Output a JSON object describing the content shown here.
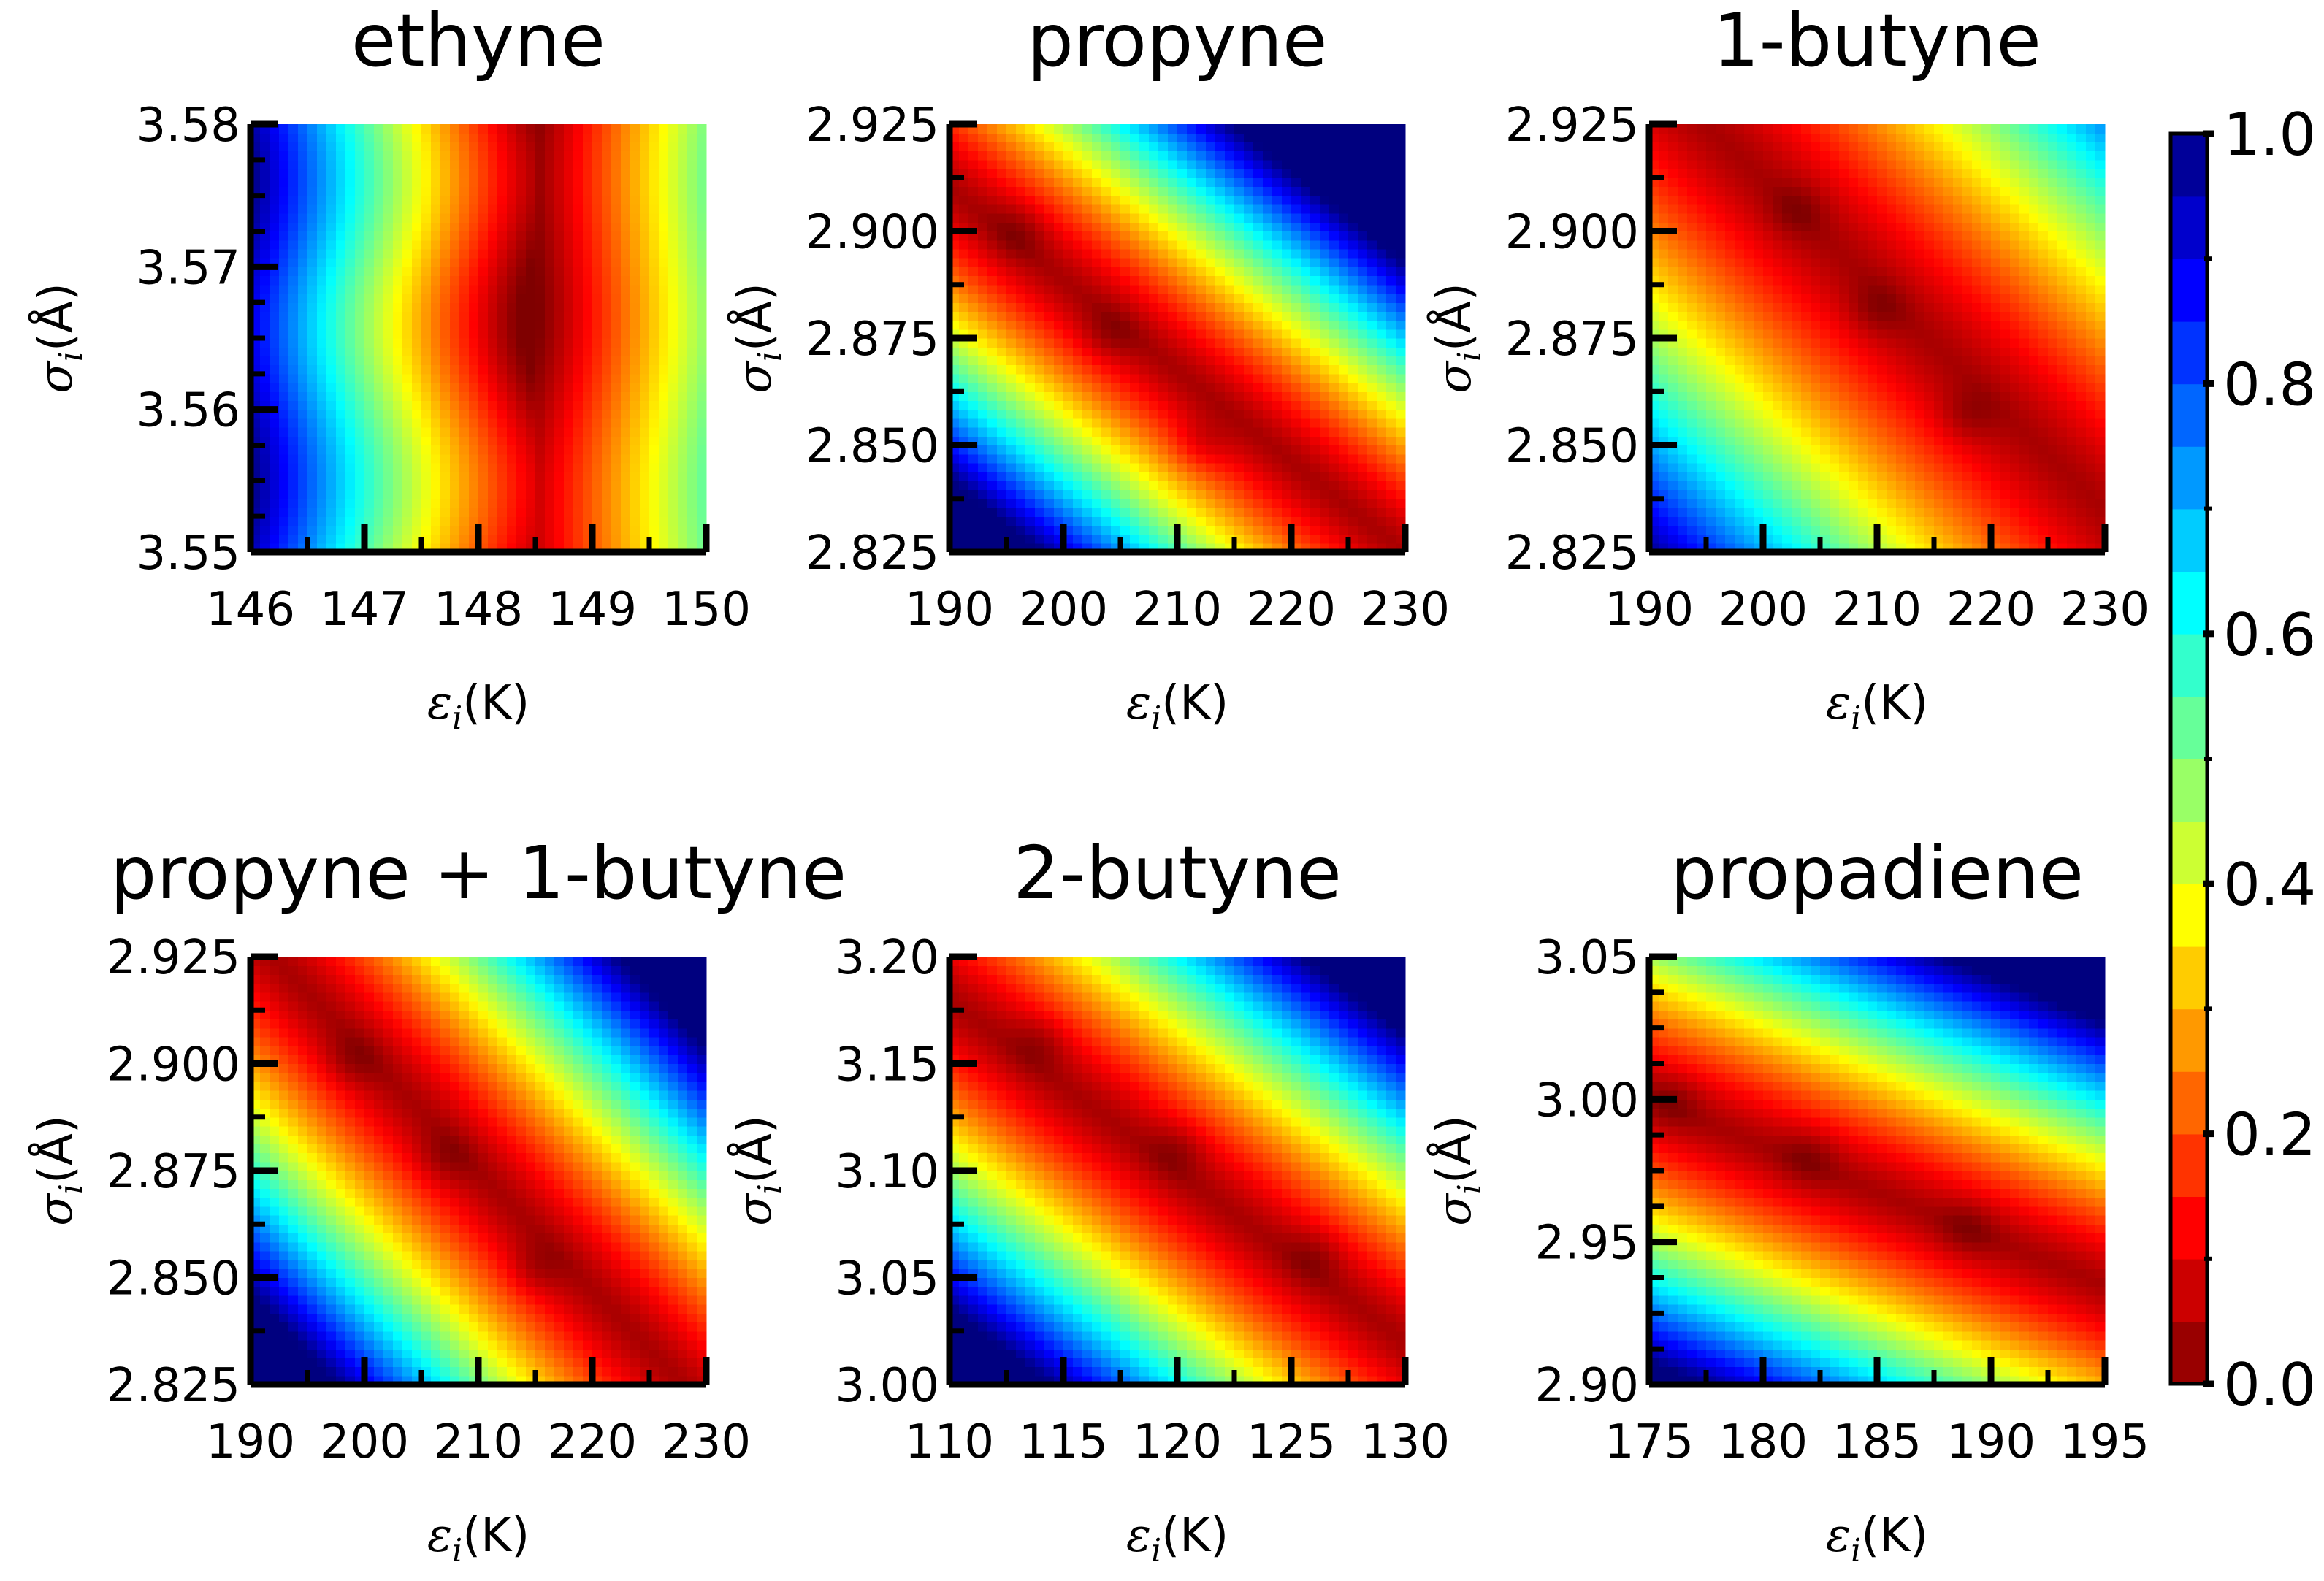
{
  "colormap": {
    "name": "jet",
    "stops": [
      "#00007f",
      "#0000ff",
      "#007fff",
      "#00ffff",
      "#7fff7f",
      "#ffff00",
      "#ff7f00",
      "#ff0000",
      "#7f0000"
    ]
  },
  "colorbar": {
    "range": [
      0.0,
      1.0
    ],
    "ticks": [
      "0.0",
      "0.2",
      "0.4",
      "0.6",
      "0.8",
      "1.0"
    ]
  },
  "chart_data": [
    {
      "type": "heatmap",
      "title": "ethyne",
      "xlabel_symbol": "ε",
      "xlabel_sub": "i",
      "xlabel_unit": "(K)",
      "ylabel_symbol": "σ",
      "ylabel_sub": "i",
      "ylabel_unit": "(Å)",
      "xlim": [
        146,
        150
      ],
      "ylim": [
        3.55,
        3.58
      ],
      "xticks": [
        "146",
        "147",
        "148",
        "149",
        "150"
      ],
      "yticks": [
        "3.55",
        "3.56",
        "3.57",
        "3.58"
      ],
      "pattern": "vertical",
      "valley_x": 148.5,
      "valley_y": 3.574
    },
    {
      "type": "heatmap",
      "title": "propyne",
      "xlabel_symbol": "ε",
      "xlabel_sub": "i",
      "xlabel_unit": "(K)",
      "ylabel_symbol": "σ",
      "ylabel_sub": "i",
      "ylabel_unit": "(Å)",
      "xlim": [
        190,
        230
      ],
      "ylim": [
        2.825,
        2.925
      ],
      "xticks": [
        "190",
        "200",
        "210",
        "220",
        "230"
      ],
      "yticks": [
        "2.825",
        "2.850",
        "2.875",
        "2.900",
        "2.925"
      ],
      "pattern": "diagonal",
      "valley": [
        [
          190,
          2.91
        ],
        [
          230,
          2.825
        ]
      ],
      "width": 0.55,
      "minima": [
        [
          196,
          2.9
        ],
        [
          204,
          2.876
        ],
        [
          212,
          2.85
        ]
      ]
    },
    {
      "type": "heatmap",
      "title": "1-butyne",
      "xlabel_symbol": "ε",
      "xlabel_sub": "i",
      "xlabel_unit": "(K)",
      "ylabel_symbol": "σ",
      "ylabel_sub": "i",
      "ylabel_unit": "(Å)",
      "xlim": [
        190,
        230
      ],
      "ylim": [
        2.825,
        2.925
      ],
      "xticks": [
        "190",
        "200",
        "210",
        "220",
        "230"
      ],
      "yticks": [
        "2.825",
        "2.850",
        "2.875",
        "2.900",
        "2.925"
      ],
      "pattern": "diagonal",
      "valley": [
        [
          195,
          2.925
        ],
        [
          230,
          2.835
        ]
      ],
      "width": 0.85,
      "minima": [
        [
          203,
          2.905
        ],
        [
          210,
          2.882
        ],
        [
          218,
          2.857
        ]
      ]
    },
    {
      "type": "heatmap",
      "title": "propyne + 1-butyne",
      "xlabel_symbol": "ε",
      "xlabel_sub": "i",
      "xlabel_unit": "(K)",
      "ylabel_symbol": "σ",
      "ylabel_sub": "i",
      "ylabel_unit": "(Å)",
      "xlim": [
        190,
        230
      ],
      "ylim": [
        2.825,
        2.925
      ],
      "xticks": [
        "190",
        "200",
        "210",
        "220",
        "230"
      ],
      "yticks": [
        "2.825",
        "2.850",
        "2.875",
        "2.900",
        "2.925"
      ],
      "pattern": "diagonal",
      "valley": [
        [
          192,
          2.925
        ],
        [
          228,
          2.825
        ]
      ],
      "width": 0.6,
      "minima": [
        [
          199,
          2.901
        ],
        [
          207,
          2.878
        ],
        [
          215,
          2.852
        ]
      ]
    },
    {
      "type": "heatmap",
      "title": "2-butyne",
      "xlabel_symbol": "ε",
      "xlabel_sub": "i",
      "xlabel_unit": "(K)",
      "ylabel_symbol": "σ",
      "ylabel_sub": "i",
      "ylabel_unit": "(Å)",
      "xlim": [
        110,
        130
      ],
      "ylim": [
        3.0,
        3.2
      ],
      "xticks": [
        "110",
        "115",
        "120",
        "125",
        "130"
      ],
      "yticks": [
        "3.00",
        "3.05",
        "3.10",
        "3.15",
        "3.20"
      ],
      "pattern": "diagonal",
      "valley": [
        [
          110,
          3.18
        ],
        [
          130,
          3.02
        ]
      ],
      "width": 0.6,
      "minima": [
        [
          114,
          3.16
        ],
        [
          120,
          3.11
        ],
        [
          126,
          3.06
        ]
      ]
    },
    {
      "type": "heatmap",
      "title": "propadiene",
      "xlabel_symbol": "ε",
      "xlabel_sub": "i",
      "xlabel_unit": "(K)",
      "ylabel_symbol": "σ",
      "ylabel_sub": "i",
      "ylabel_unit": "(Å)",
      "xlim": [
        175,
        195
      ],
      "ylim": [
        2.9,
        3.05
      ],
      "xticks": [
        "175",
        "180",
        "185",
        "190",
        "195"
      ],
      "yticks": [
        "2.90",
        "2.95",
        "3.00",
        "3.05"
      ],
      "pattern": "diagonal",
      "valley": [
        [
          175,
          3.0
        ],
        [
          195,
          2.935
        ]
      ],
      "width": 0.6,
      "minima": [
        [
          176,
          3.0
        ],
        [
          182,
          2.98
        ],
        [
          189,
          2.955
        ]
      ]
    }
  ]
}
